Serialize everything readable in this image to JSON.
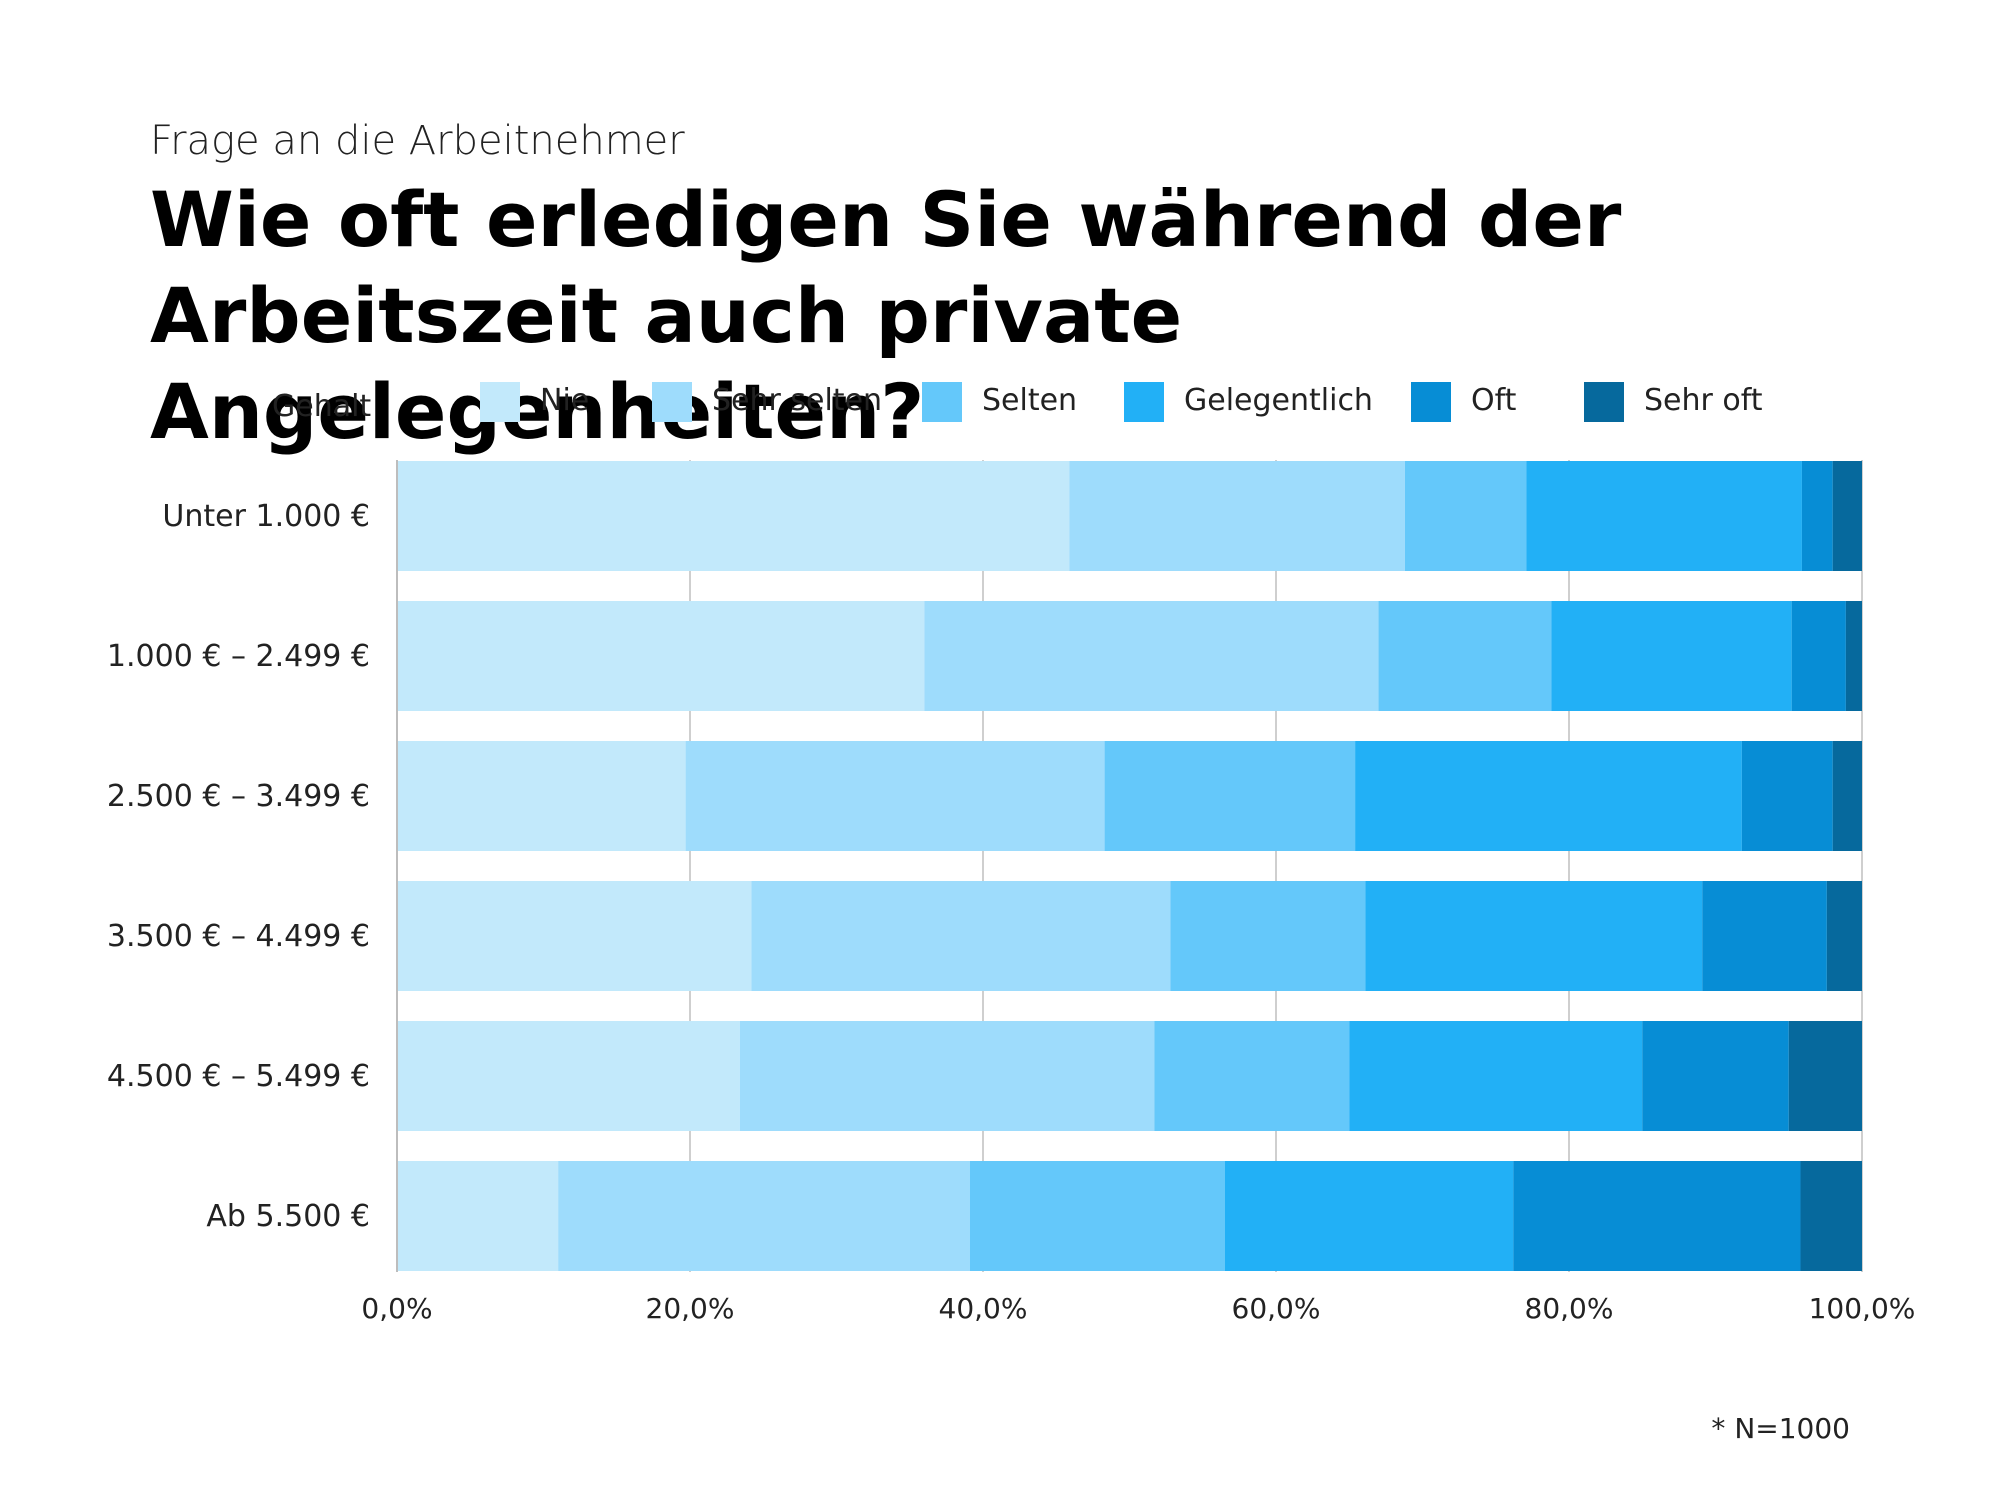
{
  "kicker": "Frage an die Arbeitnehmer",
  "title": "Wie oft erledigen Sie während der Arbeitszeit auch private Angelegenheiten?",
  "footnote": "* N=1000",
  "colors": {
    "Nie": "#c2e9fb",
    "Sehr selten": "#9edcfc",
    "Selten": "#64c8fa",
    "Gelegentlich": "#22b0f6",
    "Oft": "#078dd5",
    "Sehr oft": "#06699d",
    "grid": "#cfcfcf",
    "axis": "#bdbdbd"
  },
  "chart_data": {
    "type": "bar",
    "orientation": "horizontal",
    "stacked": true,
    "y_axis_title": "Gehalt",
    "categories": [
      "Unter 1.000 €",
      "1.000 € – 2.499 €",
      "2.500 € – 3.499 €",
      "3.500 € – 4.499 €",
      "4.500 € – 5.499 €",
      "Ab 5.500 €"
    ],
    "series": [
      {
        "name": "Nie",
        "values": [
          45.9,
          36.0,
          19.7,
          24.2,
          23.4,
          11.0
        ]
      },
      {
        "name": "Sehr selten",
        "values": [
          22.9,
          31.0,
          28.6,
          28.6,
          28.3,
          28.1
        ]
      },
      {
        "name": "Selten",
        "values": [
          8.3,
          11.8,
          17.1,
          13.3,
          13.3,
          17.4
        ]
      },
      {
        "name": "Gelegentlich",
        "values": [
          18.8,
          16.4,
          26.4,
          23.0,
          20.0,
          19.7
        ]
      },
      {
        "name": "Oft",
        "values": [
          2.1,
          3.7,
          6.2,
          8.5,
          10.0,
          19.6
        ]
      },
      {
        "name": "Sehr oft",
        "values": [
          2.0,
          1.1,
          2.0,
          2.4,
          5.0,
          4.2
        ]
      }
    ],
    "xlim": [
      0,
      100
    ],
    "x_ticks": [
      "0,0%",
      "20,0%",
      "40,0%",
      "60,0%",
      "80,0%",
      "100,0%"
    ],
    "grid": true,
    "legend_position": "top"
  }
}
